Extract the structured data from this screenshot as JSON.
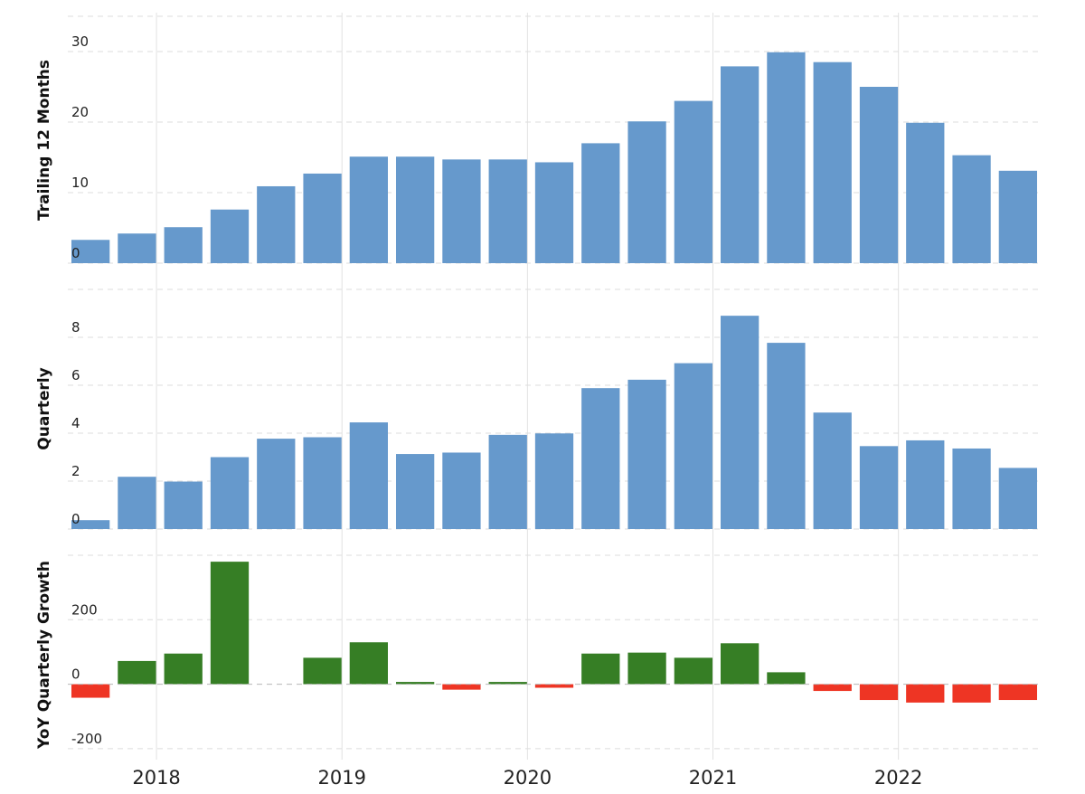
{
  "chart_data": [
    {
      "type": "bar",
      "ylabel": "Trailing 12 Months",
      "ylim": [
        0,
        35
      ],
      "yticks": [
        0,
        10,
        20,
        30
      ],
      "grid": true,
      "colors": {
        "bar": "#6699cc"
      },
      "categories": [
        "2017-Q3",
        "2017-Q4",
        "2018-Q1",
        "2018-Q2",
        "2018-Q3",
        "2018-Q4",
        "2019-Q1",
        "2019-Q2",
        "2019-Q3",
        "2019-Q4",
        "2020-Q1",
        "2020-Q2",
        "2020-Q3",
        "2020-Q4",
        "2021-Q1",
        "2021-Q2",
        "2021-Q3",
        "2021-Q4",
        "2022-Q1",
        "2022-Q2",
        "2022-Q3"
      ],
      "values": [
        3.3,
        4.2,
        5.1,
        7.6,
        10.9,
        12.7,
        15.1,
        15.1,
        14.7,
        14.7,
        14.3,
        17.0,
        20.1,
        23.0,
        27.9,
        29.9,
        28.5,
        25.0,
        19.9,
        15.3,
        13.1
      ]
    },
    {
      "type": "bar",
      "ylabel": "Quarterly",
      "ylim": [
        0,
        10
      ],
      "yticks": [
        0,
        2,
        4,
        6,
        8
      ],
      "grid": true,
      "colors": {
        "bar": "#6699cc"
      },
      "categories": [
        "2017-Q3",
        "2017-Q4",
        "2018-Q1",
        "2018-Q2",
        "2018-Q3",
        "2018-Q4",
        "2019-Q1",
        "2019-Q2",
        "2019-Q3",
        "2019-Q4",
        "2020-Q1",
        "2020-Q2",
        "2020-Q3",
        "2020-Q4",
        "2021-Q1",
        "2021-Q2",
        "2021-Q3",
        "2021-Q4",
        "2022-Q1",
        "2022-Q2",
        "2022-Q3"
      ],
      "values": [
        0.37,
        2.18,
        1.98,
        3.0,
        3.77,
        3.83,
        4.45,
        3.13,
        3.19,
        3.93,
        3.99,
        5.88,
        6.23,
        6.92,
        8.9,
        7.77,
        4.86,
        3.46,
        3.7,
        3.36,
        2.55
      ]
    },
    {
      "type": "bar",
      "ylabel": "YoY Quarterly Growth",
      "ylim": [
        -220,
        400
      ],
      "yticks": [
        -200,
        0,
        200
      ],
      "grid": true,
      "colors": {
        "positive": "#367e25",
        "negative": "#ee3524"
      },
      "categories": [
        "2017-Q3",
        "2017-Q4",
        "2018-Q1",
        "2018-Q2",
        "2018-Q3",
        "2018-Q4",
        "2019-Q1",
        "2019-Q2",
        "2019-Q3",
        "2019-Q4",
        "2020-Q1",
        "2020-Q2",
        "2020-Q3",
        "2020-Q4",
        "2021-Q1",
        "2021-Q2",
        "2021-Q3",
        "2021-Q4",
        "2022-Q1",
        "2022-Q2",
        "2022-Q3"
      ],
      "values": [
        -42,
        72,
        95,
        380,
        0,
        82,
        130,
        7,
        -17,
        7,
        -11,
        95,
        98,
        82,
        127,
        37,
        -21,
        -49,
        -57,
        -57,
        -49
      ]
    }
  ],
  "x_axis": {
    "labels": [
      "2018",
      "2019",
      "2020",
      "2021",
      "2022"
    ]
  }
}
